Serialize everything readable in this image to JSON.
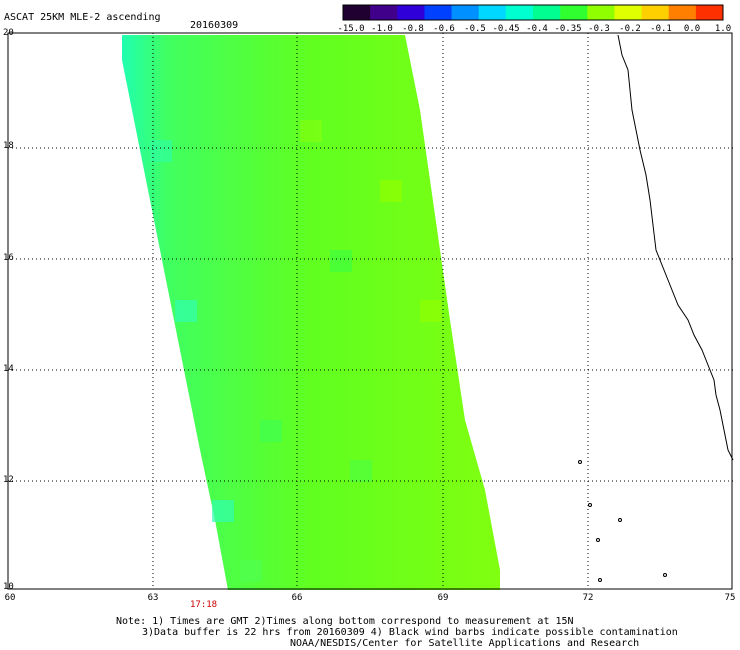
{
  "header": {
    "title": "ASCAT 25KM MLE-2 ascending",
    "date": "20160309"
  },
  "colorbar": {
    "labels": [
      "-15.0",
      "-1.0",
      "-0.8",
      "-0.6",
      "-0.5",
      "-0.45",
      "-0.4",
      "-0.35",
      "-0.3",
      "-0.2",
      "-0.1",
      "0.0",
      "1.0"
    ],
    "colors": [
      "#200030",
      "#40008a",
      "#3000d8",
      "#0040ff",
      "#0090ff",
      "#00d8ff",
      "#00ffd0",
      "#00ff90",
      "#30ff30",
      "#90ff00",
      "#e0ff00",
      "#ffd000",
      "#ff8000",
      "#ff3000"
    ]
  },
  "axes": {
    "y_labels": [
      "20",
      "18",
      "16",
      "14",
      "12",
      "10"
    ],
    "x_labels": [
      "60",
      "63",
      "66",
      "69",
      "72",
      "75"
    ]
  },
  "time_label": "17:18",
  "notes": {
    "line1": "Note: 1) Times are GMT 2)Times along bottom correspond to measurement at 15N",
    "line2": "3)Data buffer is 22 hrs from 20160309 4) Black wind barbs indicate possible contamination",
    "line3": "NOAA/NESDIS/Center for Satellite Applications and Research"
  },
  "colors": {
    "swath_main": "#60ff20",
    "swath_edge": "#20ffb0",
    "grid": "#000000"
  }
}
